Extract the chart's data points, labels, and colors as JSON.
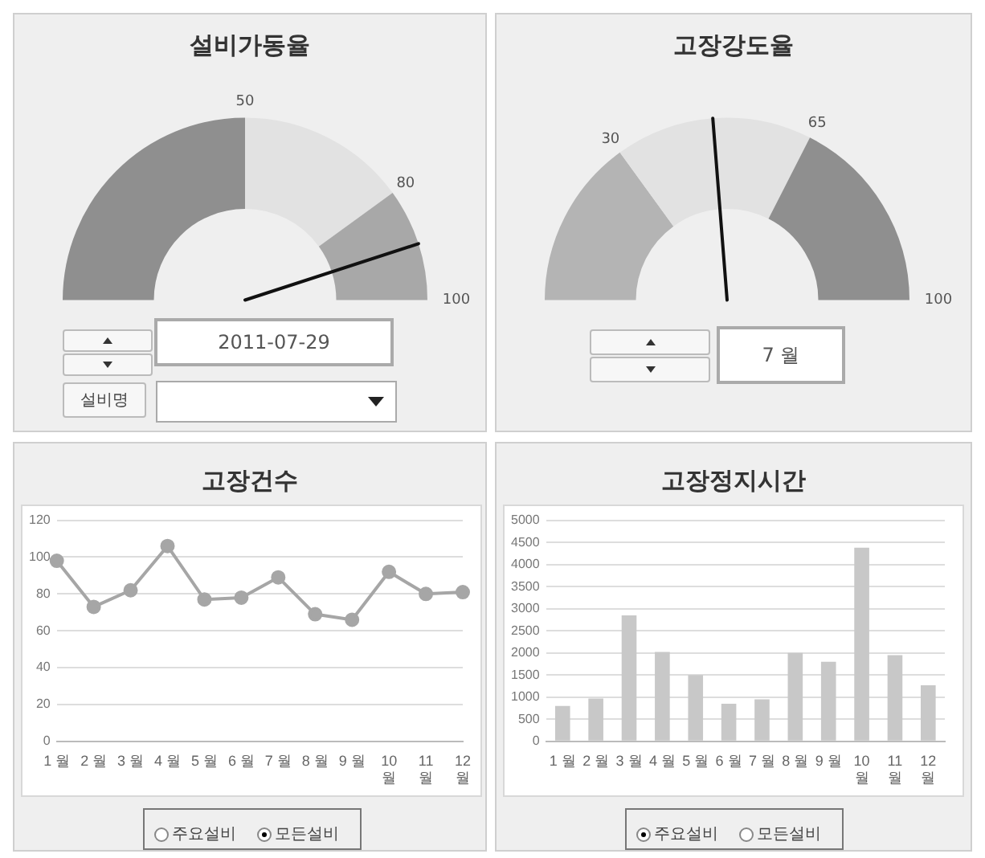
{
  "chart_data": [
    {
      "type": "donut",
      "title": "설비가동율",
      "categories": [
        "50",
        "80",
        "100"
      ],
      "values": [
        50,
        30,
        20
      ],
      "colors": [
        "#8f8f8f",
        "#e2e2e2",
        "#a8a8a8"
      ],
      "needle": "100",
      "legend": false,
      "annotations": [
        "2011-07-29",
        "설비명"
      ]
    },
    {
      "type": "donut",
      "title": "고장강도율",
      "categories": [
        "30",
        "65",
        "100"
      ],
      "values": [
        30,
        35,
        35
      ],
      "colors": [
        "#b4b4b4",
        "#e2e2e2",
        "#8f8f8f"
      ],
      "needle": "65",
      "legend": false,
      "annotations": [
        "7 월"
      ]
    },
    {
      "type": "line",
      "title": "고장건수",
      "categories": [
        "1 월",
        "2 월",
        "3 월",
        "4 월",
        "5 월",
        "6 월",
        "7 월",
        "8 월",
        "9 월",
        "10 월",
        "11 월",
        "12 월"
      ],
      "series": [
        {
          "color": "#a6a6a6",
          "values": [
            98,
            73,
            82,
            106,
            77,
            78,
            89,
            69,
            66,
            92,
            80,
            81
          ]
        }
      ],
      "ylim": [
        0,
        120
      ],
      "yticks": [
        0,
        20,
        40,
        60,
        80,
        100,
        120
      ],
      "grid": "y",
      "legend": false,
      "marker": "circle",
      "line_style": "solid",
      "annotations": [
        "주요설비",
        "모든설비"
      ]
    },
    {
      "type": "bar",
      "title": "고장정지시간",
      "categories": [
        "1 월",
        "2 월",
        "3 월",
        "4 월",
        "5 월",
        "6 월",
        "7 월",
        "8 월",
        "9 월",
        "10 월",
        "11 월",
        "12 월"
      ],
      "series": [
        {
          "color": "#c8c8c8",
          "values": [
            800,
            970,
            2850,
            2020,
            1500,
            850,
            950,
            2000,
            1800,
            4380,
            1950,
            1270
          ]
        }
      ],
      "ylim": [
        0,
        5000
      ],
      "yticks": [
        0,
        500,
        1000,
        1500,
        2000,
        2500,
        3000,
        3500,
        4000,
        4500,
        5000
      ],
      "grid": "y",
      "legend": false,
      "annotations": [
        "주요설비",
        "모든설비"
      ]
    }
  ]
}
